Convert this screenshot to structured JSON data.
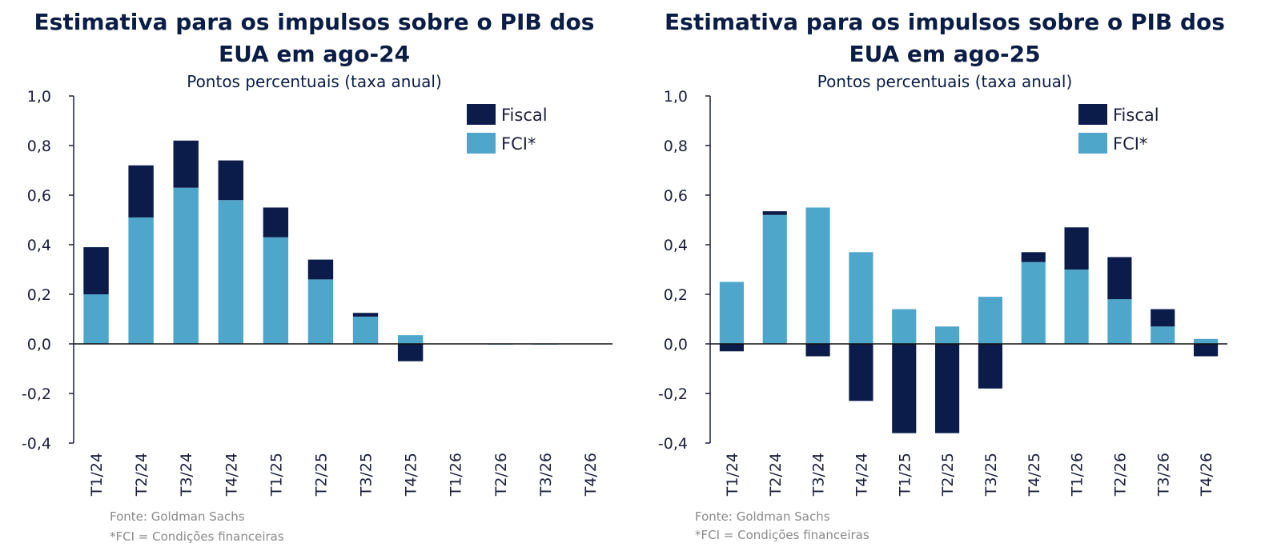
{
  "colors": {
    "fiscal": "#0b1b4a",
    "fci": "#4ea6cb",
    "axis": "#1b1f3b",
    "title": "#0b1d45",
    "note": "#8a8a8a"
  },
  "chart_data": [
    {
      "type": "bar",
      "stacked": true,
      "title_lines": [
        "Estimativa para os impulsos sobre o PIB dos",
        "EUA em ago-24"
      ],
      "subtitle": "Pontos percentuais (taxa anual)",
      "xlabel": "",
      "ylabel": "",
      "ylim": [
        -0.4,
        1.0
      ],
      "yticks": [
        "1,0",
        "0,8",
        "0,6",
        "0,4",
        "0,2",
        "0,0",
        "-0,2",
        "-0,4"
      ],
      "ytick_values": [
        1.0,
        0.8,
        0.6,
        0.4,
        0.2,
        0.0,
        -0.2,
        -0.4
      ],
      "categories": [
        "T1/24",
        "T2/24",
        "T3/24",
        "T4/24",
        "T1/25",
        "T2/25",
        "T3/25",
        "T4/25",
        "T1/26",
        "T2/26",
        "T3/26",
        "T4/26"
      ],
      "series": [
        {
          "name": "FCI*",
          "values": [
            0.2,
            0.51,
            0.63,
            0.58,
            0.43,
            0.26,
            0.11,
            0.035,
            0.0,
            -0.003,
            -0.003,
            0.0
          ]
        },
        {
          "name": "Fiscal",
          "values": [
            0.19,
            0.21,
            0.19,
            0.16,
            0.12,
            0.08,
            0.015,
            -0.07,
            0.0,
            0.0,
            0.0,
            0.0
          ]
        }
      ],
      "legend": [
        "Fiscal",
        "FCI*"
      ],
      "legend_position": "top-right",
      "footnotes": [
        "Fonte: Goldman Sachs",
        "*FCI = Condições financeiras"
      ]
    },
    {
      "type": "bar",
      "stacked": true,
      "title_lines": [
        "Estimativa para os impulsos sobre o PIB dos",
        "EUA em ago-25"
      ],
      "subtitle": "Pontos percentuais (taxa anual)",
      "xlabel": "",
      "ylabel": "",
      "ylim": [
        -0.4,
        1.0
      ],
      "yticks": [
        "1,0",
        "0,8",
        "0,6",
        "0,4",
        "0,2",
        "0,0",
        "-0,2",
        "-0,4"
      ],
      "ytick_values": [
        1.0,
        0.8,
        0.6,
        0.4,
        0.2,
        0.0,
        -0.2,
        -0.4
      ],
      "categories": [
        "T1/24",
        "T2/24",
        "T3/24",
        "T4/24",
        "T1/25",
        "T2/25",
        "T3/25",
        "T4/25",
        "T1/26",
        "T2/26",
        "T3/26",
        "T4/26"
      ],
      "series": [
        {
          "name": "FCI*",
          "values": [
            0.25,
            0.52,
            0.55,
            0.37,
            0.14,
            0.07,
            0.19,
            0.33,
            0.3,
            0.18,
            0.07,
            0.02
          ]
        },
        {
          "name": "Fiscal",
          "values": [
            -0.03,
            0.015,
            -0.05,
            -0.23,
            -0.36,
            -0.36,
            -0.18,
            0.04,
            0.17,
            0.17,
            0.07,
            -0.05
          ]
        }
      ],
      "legend": [
        "Fiscal",
        "FCI*"
      ],
      "legend_position": "top-right",
      "footnotes": [
        "Fonte: Goldman Sachs",
        "*FCI = Condições financeiras"
      ]
    }
  ]
}
